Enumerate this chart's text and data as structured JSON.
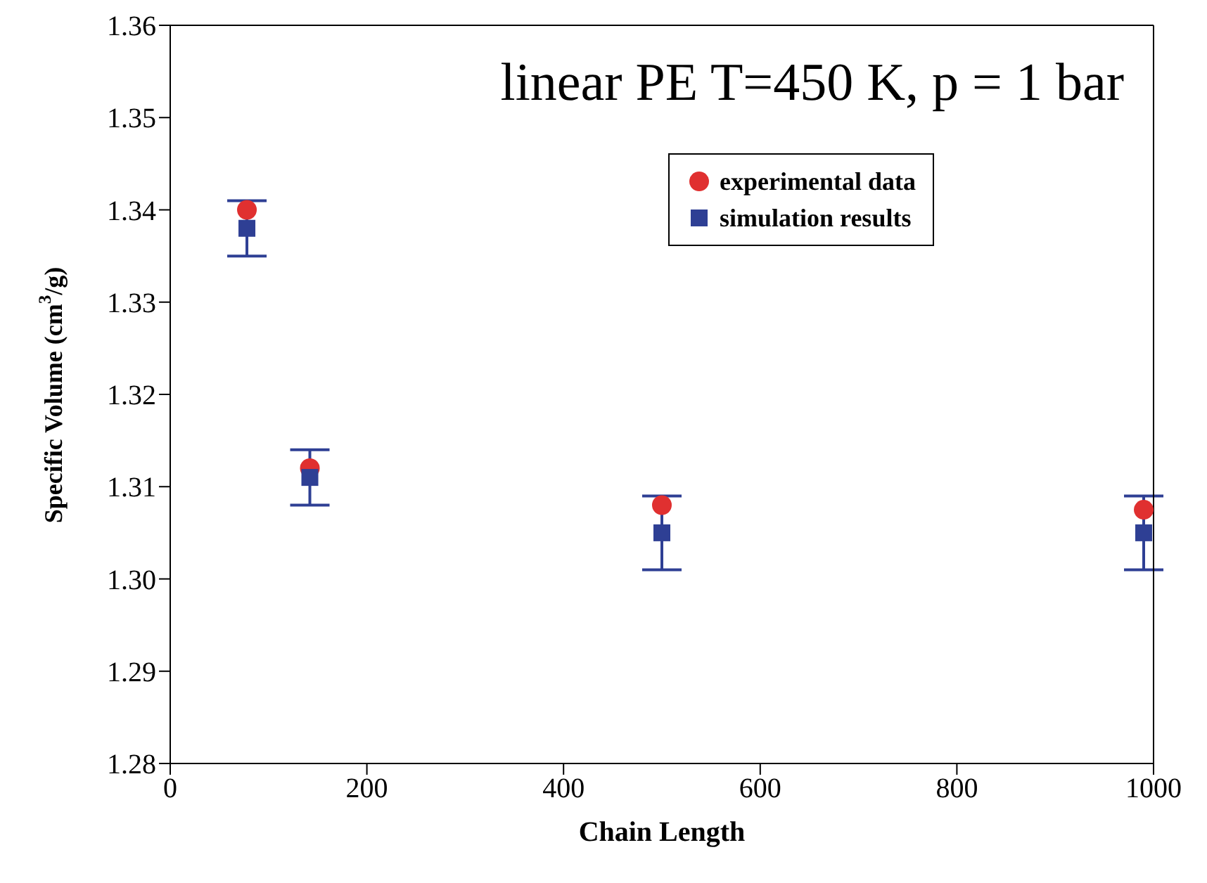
{
  "chart_data": {
    "type": "scatter",
    "title": "linear PE   T=450 K, p = 1 bar",
    "xlabel": "Chain Length",
    "ylabel": "Specific Volume (cm$^{3}$/g)",
    "x": [
      78,
      142,
      500,
      990
    ],
    "series": [
      {
        "name": "experimental data",
        "color": "#e03030",
        "marker": "circle",
        "values": [
          1.34,
          1.312,
          1.308,
          1.3075
        ]
      },
      {
        "name": "simulation results",
        "color": "#2e3f94",
        "marker": "square",
        "values": [
          1.338,
          1.311,
          1.305,
          1.305
        ],
        "errors": [
          0.003,
          0.003,
          0.004,
          0.004
        ]
      }
    ],
    "xlim": [
      0,
      1000
    ],
    "xticks": [
      0,
      200,
      400,
      600,
      800,
      1000
    ],
    "ylim": [
      1.28,
      1.36
    ],
    "yticks": [
      1.28,
      1.29,
      {
        "value": 1.3,
        "label": "1.30"
      },
      1.31,
      1.32,
      1.33,
      1.34,
      1.35,
      1.36
    ],
    "legend": "top right"
  }
}
